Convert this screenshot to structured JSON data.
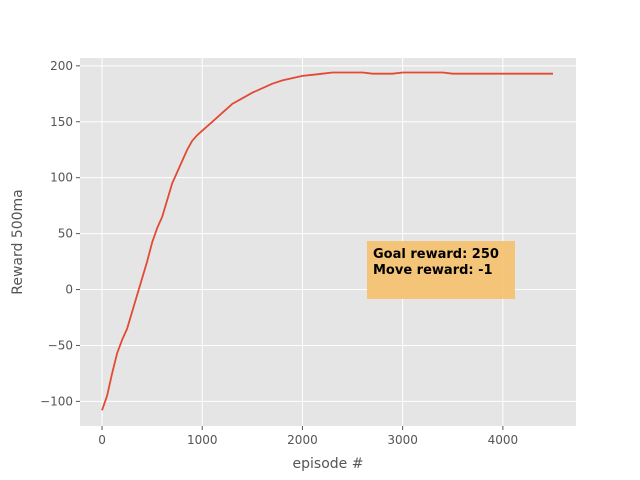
{
  "chart_data": {
    "type": "line",
    "title": "",
    "xlabel": "episode #",
    "ylabel": "Reward 500ma",
    "xlim": [
      -220,
      4730
    ],
    "ylim": [
      -122,
      207
    ],
    "xticks": [
      0,
      1000,
      2000,
      3000,
      4000
    ],
    "yticks": [
      -100,
      -50,
      0,
      50,
      100,
      150,
      200
    ],
    "xtick_labels": [
      "0",
      "1000",
      "2000",
      "3000",
      "4000"
    ],
    "ytick_labels": [
      "−100",
      "−50",
      "0",
      "50",
      "100",
      "150",
      "200"
    ],
    "grid": true,
    "series": [
      {
        "color": "#e24a33",
        "x": [
          0,
          50,
          100,
          150,
          200,
          250,
          300,
          350,
          400,
          450,
          500,
          550,
          600,
          650,
          700,
          750,
          800,
          850,
          900,
          950,
          1000,
          1100,
          1200,
          1300,
          1400,
          1500,
          1600,
          1700,
          1800,
          1900,
          2000,
          2100,
          2200,
          2300,
          2400,
          2500,
          2600,
          2700,
          2800,
          2900,
          3000,
          3100,
          3200,
          3300,
          3400,
          3500,
          3600,
          3700,
          3800,
          3900,
          4000,
          4100,
          4200,
          4300,
          4400,
          4500
        ],
        "y": [
          -108,
          -95,
          -75,
          -57,
          -45,
          -35,
          -20,
          -5,
          10,
          25,
          42,
          55,
          65,
          80,
          95,
          105,
          115,
          125,
          133,
          138,
          142,
          150,
          158,
          166,
          171,
          176,
          180,
          184,
          187,
          189,
          191,
          192,
          193,
          194,
          194,
          194,
          194,
          193,
          193,
          193,
          194,
          194,
          194,
          194,
          194,
          193,
          193,
          193,
          193,
          193,
          193,
          193,
          193,
          193,
          193,
          193
        ]
      }
    ],
    "annotations": [
      {
        "lines": [
          "Goal reward: 250",
          "Move reward: -1"
        ],
        "box_color": "#f5c06b",
        "text_color": "#000000"
      }
    ]
  }
}
